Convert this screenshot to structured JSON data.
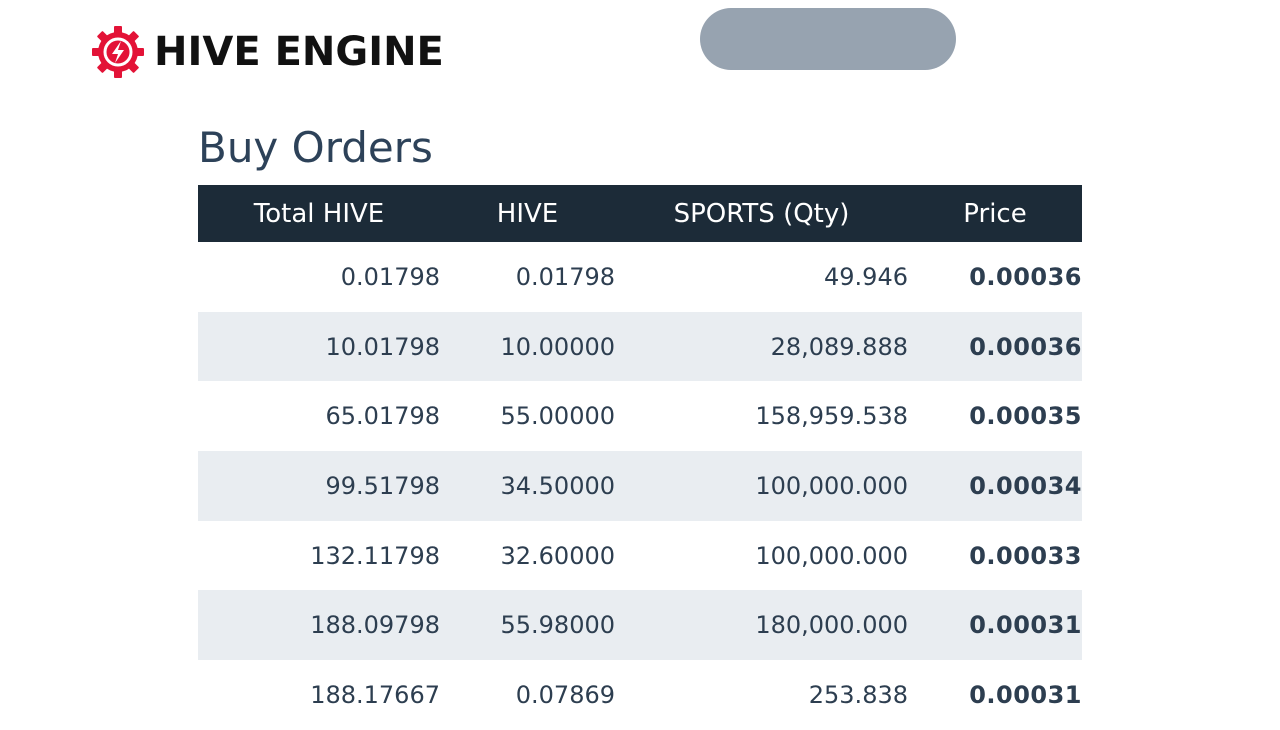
{
  "header": {
    "logo_text": "HIVE ENGINE",
    "logo_icon": "lightning-gear-icon",
    "brand_color": "#e31337",
    "action_button_label": ""
  },
  "buy_orders": {
    "title": "Buy Orders",
    "columns": [
      "Total HIVE",
      "HIVE",
      "SPORTS (Qty)",
      "Price"
    ],
    "rows": [
      {
        "total": "0.01798",
        "hive": "0.01798",
        "qty": "49.946",
        "price": "0.00036"
      },
      {
        "total": "10.01798",
        "hive": "10.00000",
        "qty": "28,089.888",
        "price": "0.00036"
      },
      {
        "total": "65.01798",
        "hive": "55.00000",
        "qty": "158,959.538",
        "price": "0.00035"
      },
      {
        "total": "99.51798",
        "hive": "34.50000",
        "qty": "100,000.000",
        "price": "0.00034"
      },
      {
        "total": "132.11798",
        "hive": "32.60000",
        "qty": "100,000.000",
        "price": "0.00033"
      },
      {
        "total": "188.09798",
        "hive": "55.98000",
        "qty": "180,000.000",
        "price": "0.00031"
      },
      {
        "total": "188.17667",
        "hive": "0.07869",
        "qty": "253.838",
        "price": "0.00031"
      }
    ]
  }
}
